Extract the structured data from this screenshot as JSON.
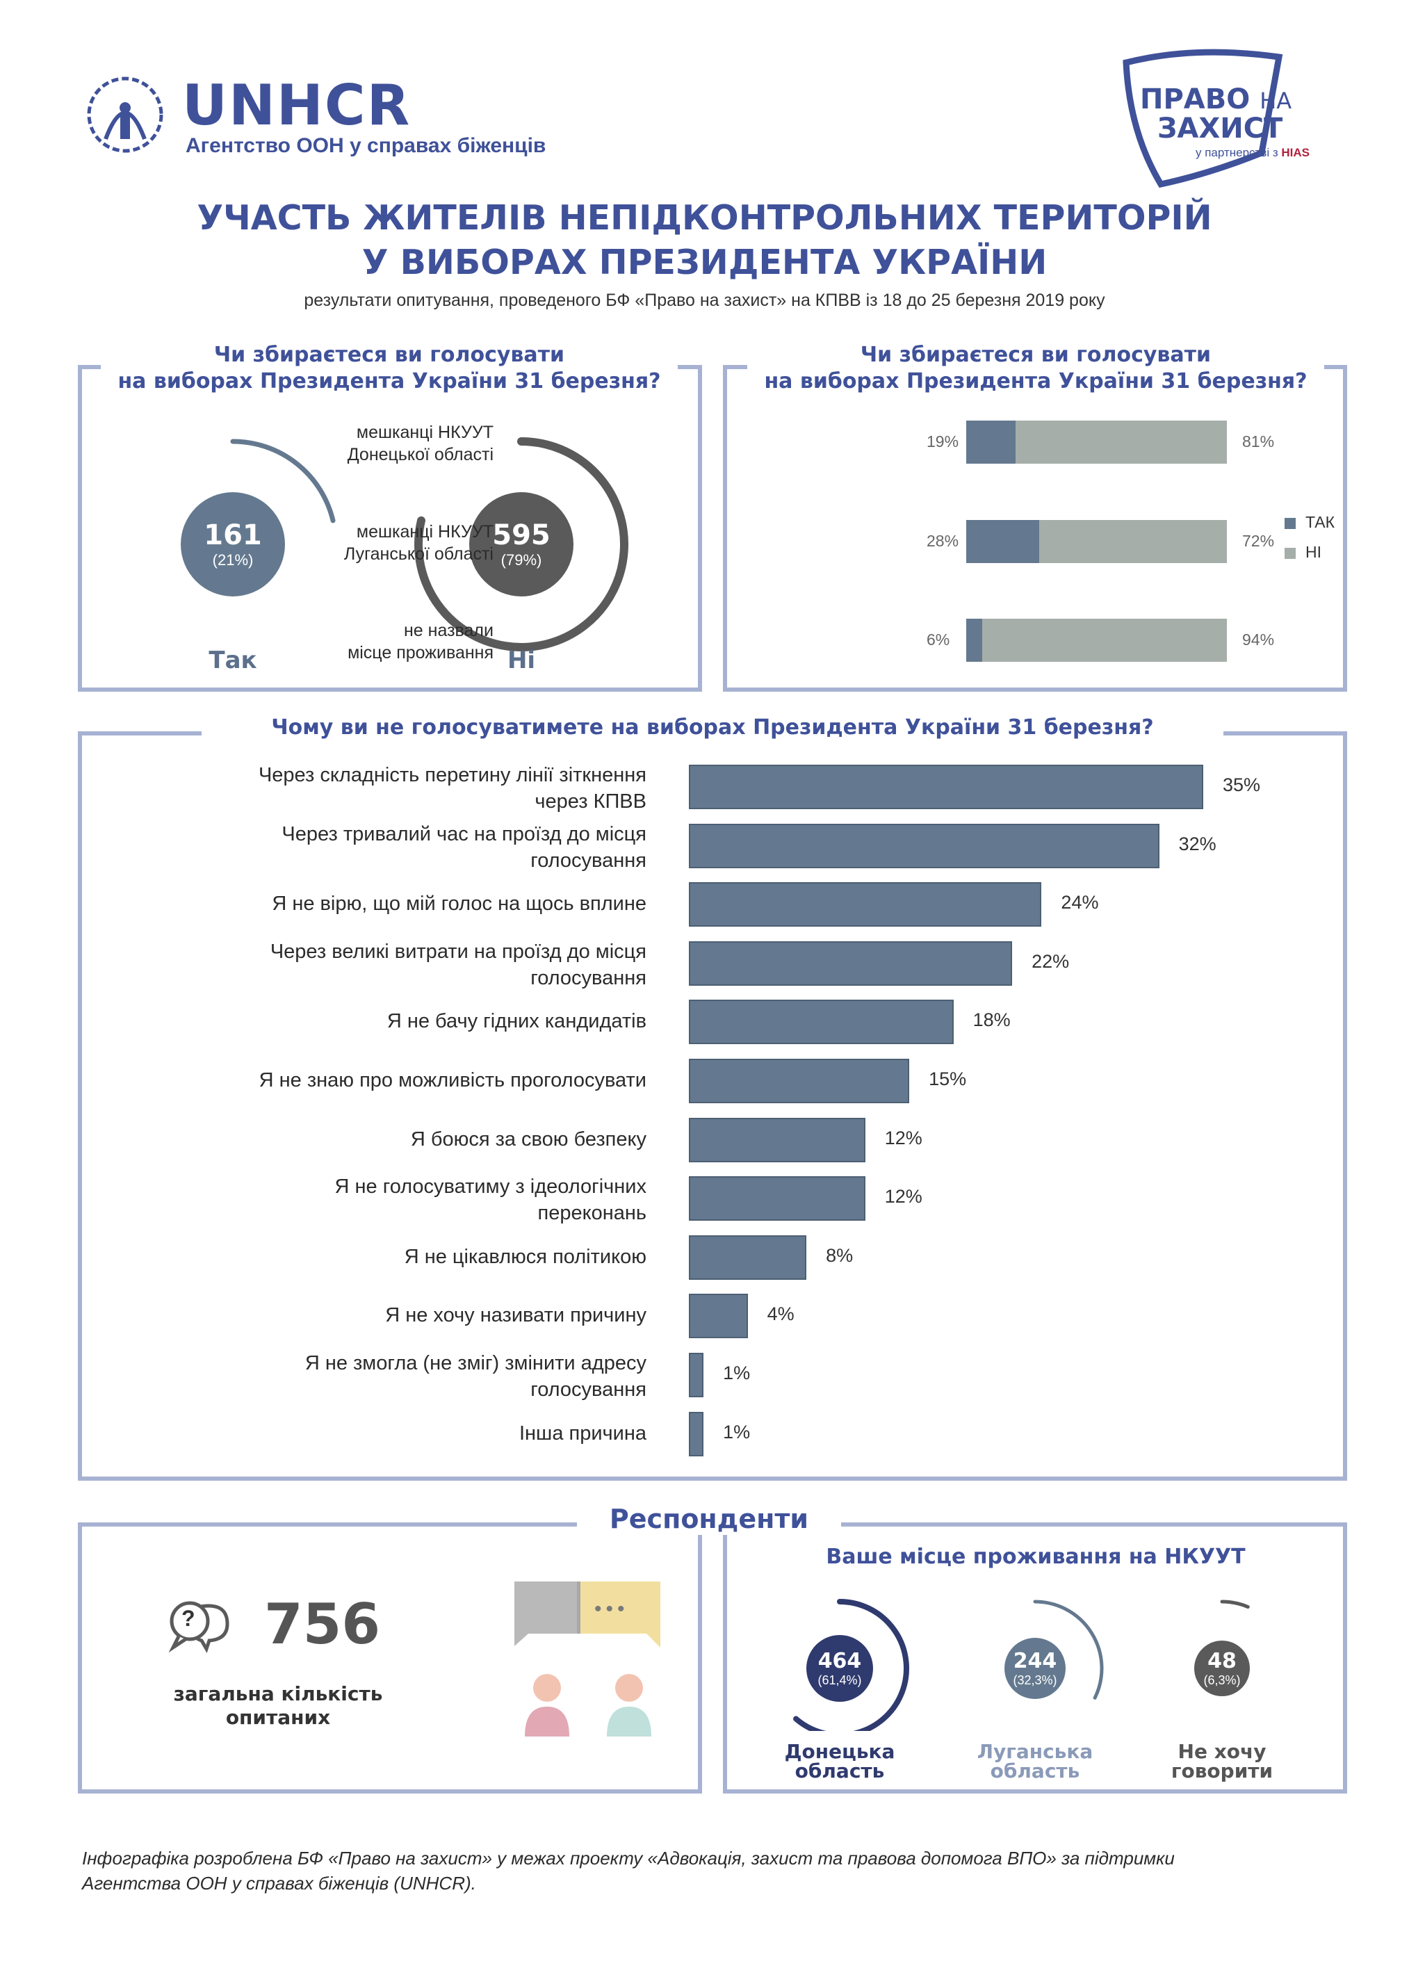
{
  "header": {
    "unhcr_name": "UNHCR",
    "unhcr_tagline": "Агентство ООН у справах біженців",
    "partner_line1": "ПРАВО",
    "partner_line1b": "НА",
    "partner_line2": "ЗАХИСТ",
    "partner_sub": "у партнерстві з",
    "partner_hias": "HIAS"
  },
  "title_line1": "УЧАСТЬ ЖИТЕЛІВ НЕПІДКОНТРОЛЬНИХ ТЕРИТОРІЙ",
  "title_line2": "У ВИБОРАХ ПРЕЗИДЕНТА УКРАЇНИ",
  "subtitle": "результати опитування, проведеного БФ «Право на захист» на КПВВ із 18 до 25 березня 2019 року",
  "colors": {
    "accent": "#3f5199",
    "bar": "#64798f",
    "no": "#a6aeaa",
    "dark": "#5a5a5a",
    "navy": "#2f3a6e",
    "frame": "#a7b2d3"
  },
  "chart_data": [
    {
      "type": "pie",
      "title_line1": "Чи збираєтеся ви голосувати",
      "title_line2": "на виборах Президента України 31 березня?",
      "categories": [
        "Так",
        "Ні"
      ],
      "values": [
        161,
        595
      ],
      "percent_labels": [
        "(21%)",
        "(79%)"
      ],
      "value_labels": [
        "161",
        "595"
      ]
    },
    {
      "type": "bar",
      "stacked": true,
      "title_line1": "Чи збираєтеся ви голосувати",
      "title_line2": "на виборах Президента України 31 березня?",
      "categories": [
        [
          "мешканці НКУУТ",
          "Донецької області"
        ],
        [
          "мешканці НКУУТ",
          "Луганської області"
        ],
        [
          "не назвали",
          "місце проживання"
        ]
      ],
      "series": [
        {
          "name": "ТАК",
          "values": [
            19,
            28,
            6
          ],
          "labels": [
            "19%",
            "28%",
            "6%"
          ]
        },
        {
          "name": "НІ",
          "values": [
            81,
            72,
            94
          ],
          "labels": [
            "81%",
            "72%",
            "94%"
          ]
        }
      ],
      "legend": "right"
    },
    {
      "type": "bar",
      "orientation": "horizontal",
      "title": "Чому ви не голосуватимете на виборах Президента України 31 березня?",
      "categories": [
        [
          "Через складність перетину лінії зіткнення",
          "через КПВВ"
        ],
        [
          "Через тривалий час на проїзд до місця",
          "голосування"
        ],
        [
          "Я не вірю, що мій голос на щось вплине"
        ],
        [
          "Через великі витрати на проїзд до місця",
          "голосування"
        ],
        [
          "Я не бачу гідних кандидатів"
        ],
        [
          "Я не знаю про можливість проголосувати"
        ],
        [
          "Я боюся за свою безпеку"
        ],
        [
          "Я не голосуватиму з ідеологічних",
          "переконань"
        ],
        [
          "Я не цікавлюся політикою"
        ],
        [
          "Я не хочу називати причину"
        ],
        [
          "Я не змогла (не зміг) змінити адресу",
          "голосування"
        ],
        [
          "Інша причина"
        ]
      ],
      "values": [
        35,
        32,
        24,
        22,
        18,
        15,
        12,
        12,
        8,
        4,
        1,
        1
      ],
      "value_labels": [
        "35%",
        "32%",
        "24%",
        "22%",
        "18%",
        "15%",
        "12%",
        "12%",
        "8%",
        "4%",
        "1%",
        "1%"
      ]
    },
    {
      "type": "pie",
      "title": "Ваше місце проживання на НКУУТ",
      "categories": [
        [
          "Донецька",
          "область"
        ],
        [
          "Луганська",
          "область"
        ],
        [
          "Не хочу",
          "говорити"
        ]
      ],
      "values": [
        464,
        244,
        48
      ],
      "percent_labels": [
        "(61,4%)",
        "(32,3%)",
        "(6,3%)"
      ],
      "value_labels": [
        "464",
        "244",
        "48"
      ]
    }
  ],
  "respondents": {
    "title": "Респонденти",
    "total": "756",
    "total_label_line1": "загальна кількість",
    "total_label_line2": "опитаних",
    "bubble_mark": "?",
    "chat_dots": "•••"
  },
  "footer_line1": "Інфографіка розроблена БФ «Право на захист» у межах проекту «Адвокація, захист та правова допомога ВПО» за підтримки",
  "footer_line2": "Агентства ООН у справах біженців (UNHCR)."
}
